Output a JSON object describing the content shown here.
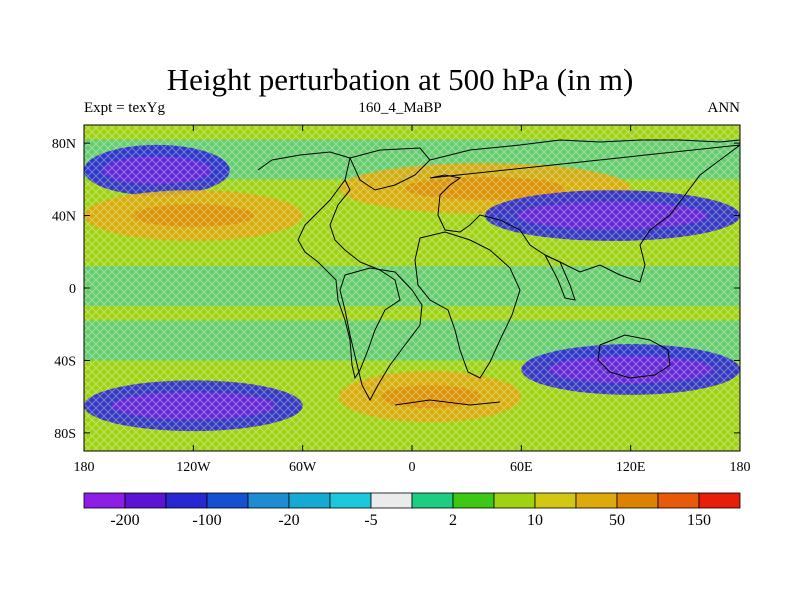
{
  "title": "Height perturbation at 500 hPa (in m)",
  "left_string": "Expt = texYg",
  "center_string": "160_4_MaBP",
  "right_string": "ANN",
  "chart_data": {
    "type": "heatmap",
    "projection": "cylindrical-equidistant",
    "variable": "500 hPa height perturbation",
    "units": "m",
    "x_ticks": [
      "180",
      "120W",
      "60W",
      "0",
      "60E",
      "120E",
      "180"
    ],
    "x_tick_values": [
      -180,
      -120,
      -60,
      0,
      60,
      120,
      180
    ],
    "y_ticks": [
      "80N",
      "40N",
      "0",
      "40S",
      "80S"
    ],
    "y_tick_values": [
      80,
      40,
      0,
      -40,
      -80
    ],
    "xlim": [
      -180,
      180
    ],
    "ylim": [
      -90,
      90
    ],
    "colorbar": {
      "labels": [
        "-200",
        "-100",
        "-20",
        "-5",
        "2",
        "10",
        "50",
        "150"
      ],
      "colors": [
        "#8c1ee6",
        "#5a14d2",
        "#2828d2",
        "#1450d2",
        "#1e8cd2",
        "#14aad2",
        "#1ec8dc",
        "#ebebeb",
        "#1ecc82",
        "#3cc814",
        "#a0d214",
        "#d2c814",
        "#dcaa0a",
        "#dc8200",
        "#e65a0a",
        "#e61e0a"
      ]
    },
    "pattern": [
      {
        "feature": "negative band",
        "lat": 65,
        "lon_range": [
          -180,
          -100
        ],
        "level": "-100"
      },
      {
        "feature": "positive band",
        "lat": 40,
        "lon_range": [
          -180,
          -60
        ],
        "level": "50"
      },
      {
        "feature": "positive area",
        "lat": 55,
        "lon_range": [
          -40,
          120
        ],
        "level": "50"
      },
      {
        "feature": "negative band",
        "lat": 40,
        "lon_range": [
          40,
          180
        ],
        "level": "-100"
      },
      {
        "feature": "negative band",
        "lat": -65,
        "lon_range": [
          -180,
          -60
        ],
        "level": "-100"
      },
      {
        "feature": "positive area",
        "lat": -60,
        "lon_range": [
          -40,
          60
        ],
        "level": "50"
      },
      {
        "feature": "negative band",
        "lat": -45,
        "lon_range": [
          60,
          180
        ],
        "level": "-100"
      },
      {
        "feature": "near zero",
        "lat": 0,
        "lon_range": [
          -180,
          180
        ],
        "level": "2"
      }
    ]
  }
}
